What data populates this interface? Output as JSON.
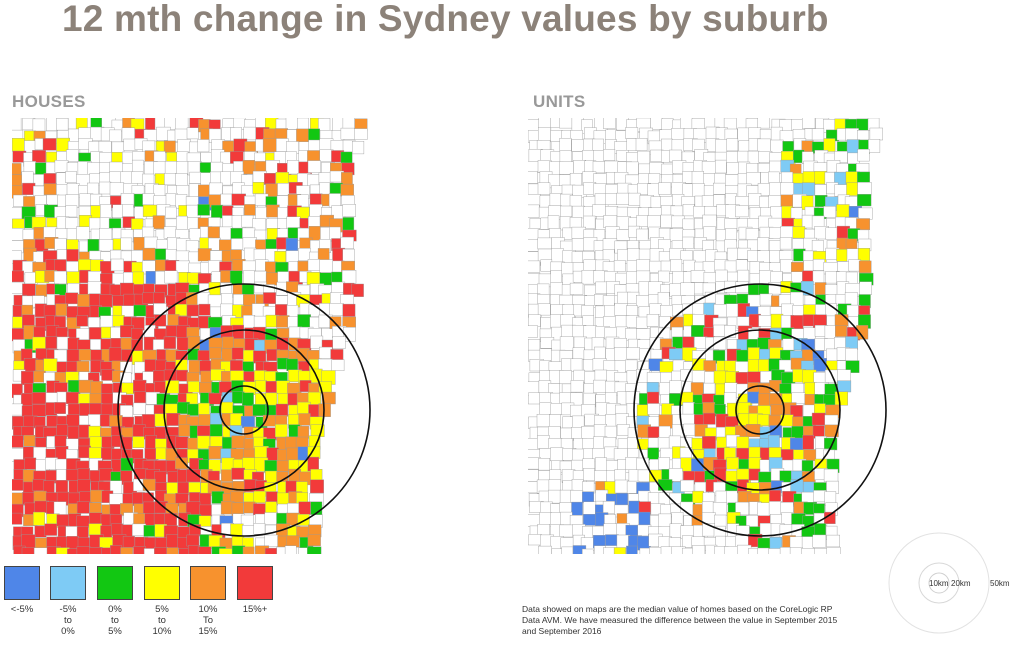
{
  "title": "12 mth change in Sydney values by suburb",
  "maps": {
    "houses": {
      "label": "HOUSES"
    },
    "units": {
      "label": "UNITS"
    }
  },
  "legend": [
    {
      "label": "<-5%",
      "color": "#4f86e8"
    },
    {
      "label": "-5%\nto\n0%",
      "color": "#7ecbf5"
    },
    {
      "label": "0%\nto\n5%",
      "color": "#12c712"
    },
    {
      "label": "5%\nto\n10%",
      "color": "#ffff00"
    },
    {
      "label": "10%\nTo\n15%",
      "color": "#f7922e"
    },
    {
      "label": "15%+",
      "color": "#f23a3a"
    }
  ],
  "footnote": "Data showed on maps are the median value of homes based on the CoreLogic RP Data AVM. We have measured the difference between the value  in September 2015 and September 2016",
  "scale": {
    "r1": "10km",
    "r2": "20km",
    "r3": "50km"
  }
}
